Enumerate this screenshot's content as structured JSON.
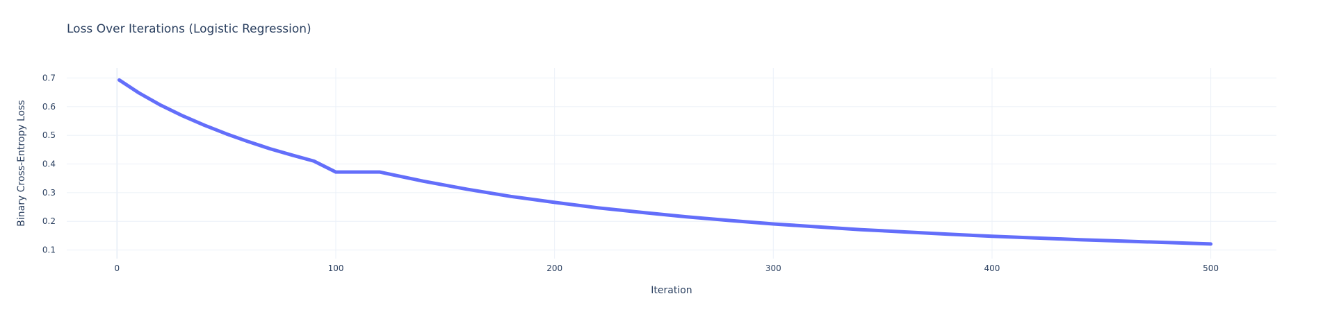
{
  "chart_data": {
    "type": "line",
    "title": "Loss Over Iterations (Logistic Regression)",
    "xlabel": "Iteration",
    "ylabel": "Binary Cross-Entropy Loss",
    "xlim": [
      -23,
      530
    ],
    "ylim": [
      0.07,
      0.735
    ],
    "x_ticks": [
      0,
      100,
      200,
      300,
      400,
      500
    ],
    "y_ticks": [
      0.1,
      0.2,
      0.3,
      0.4,
      0.5,
      0.6,
      0.7
    ],
    "grid": true,
    "line_color": "#636efa",
    "series": [
      {
        "x": [
          1,
          10,
          20,
          30,
          40,
          50,
          60,
          70,
          80,
          90,
          100,
          120,
          140,
          160,
          180,
          200,
          220,
          240,
          260,
          280,
          300,
          320,
          340,
          360,
          380,
          400,
          420,
          440,
          460,
          480,
          500
        ],
        "values": [
          0.693,
          0.648,
          0.605,
          0.568,
          0.535,
          0.505,
          0.478,
          0.453,
          0.431,
          0.41,
          0.372,
          0.372,
          0.34,
          0.312,
          0.287,
          0.266,
          0.247,
          0.231,
          0.216,
          0.203,
          0.191,
          0.181,
          0.171,
          0.163,
          0.155,
          0.148,
          0.142,
          0.136,
          0.131,
          0.126,
          0.121
        ]
      }
    ]
  }
}
